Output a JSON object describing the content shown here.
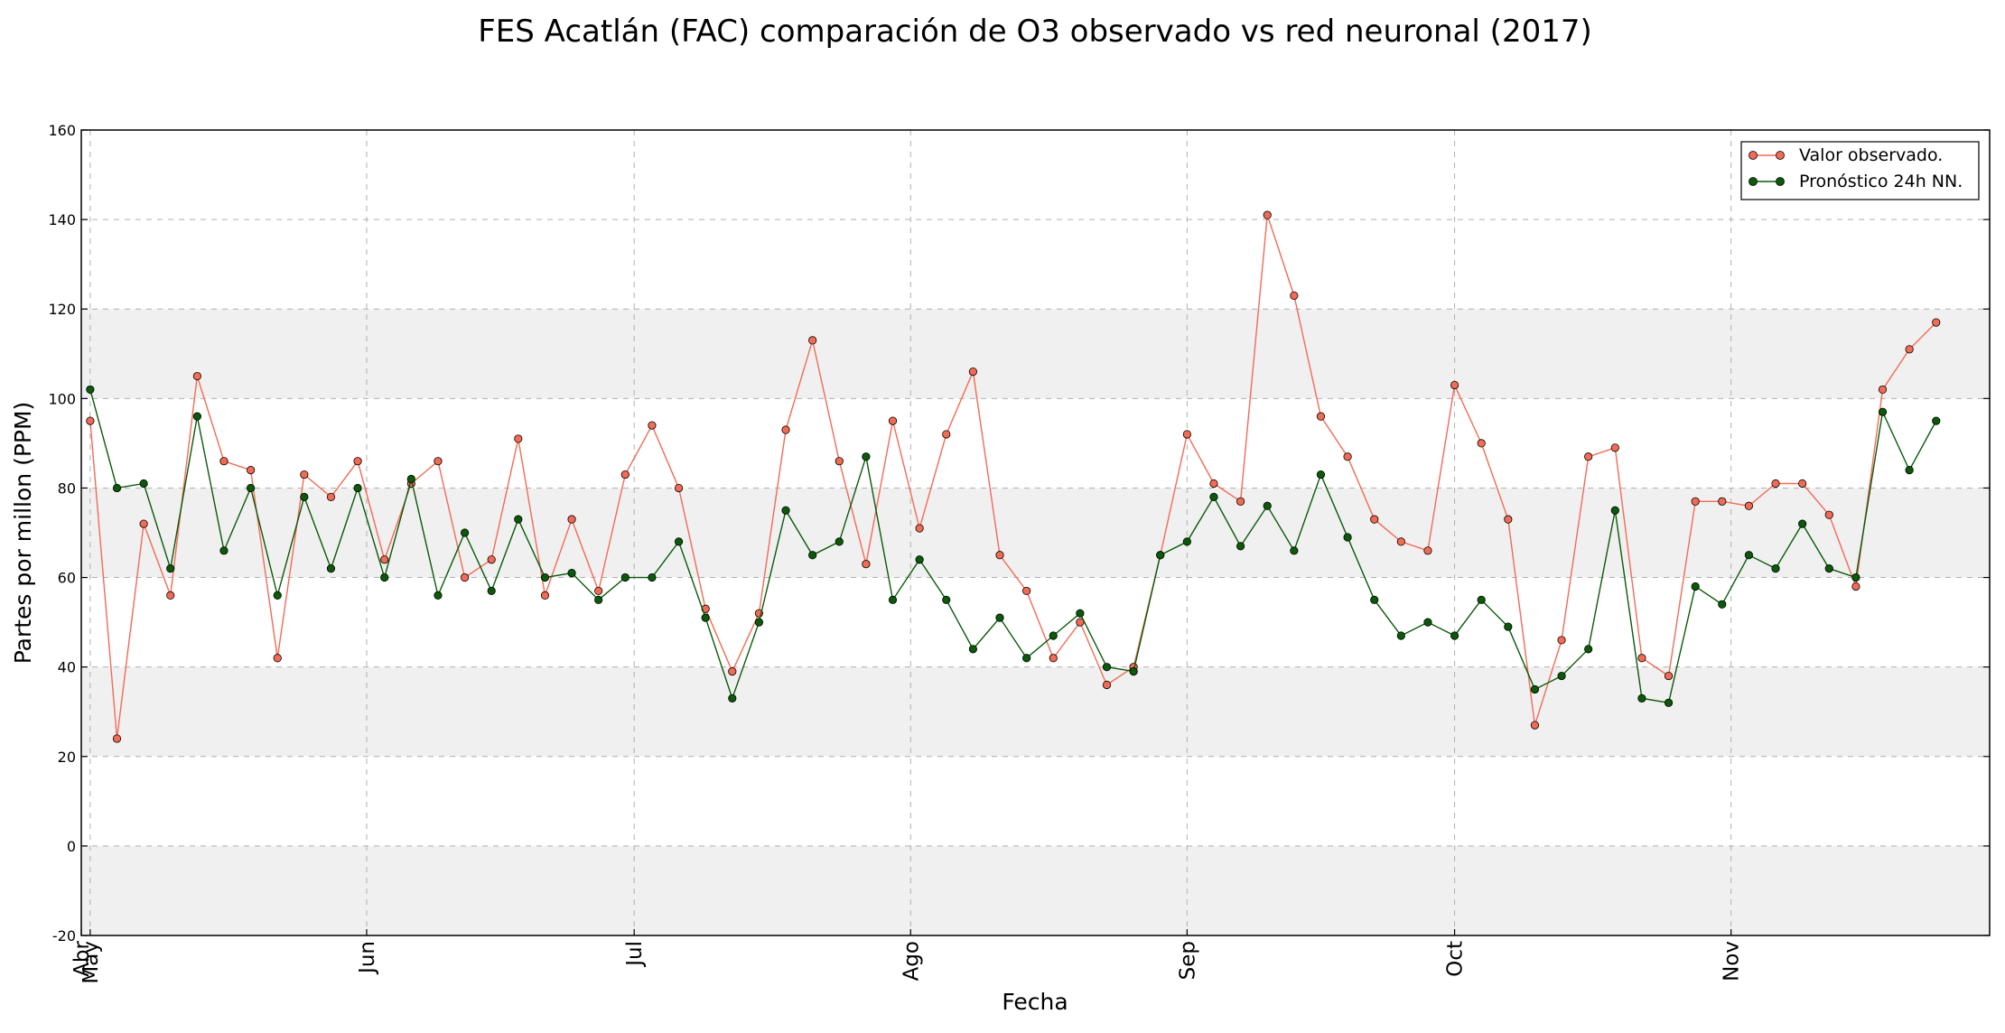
{
  "chart_data": {
    "type": "line",
    "title": "FES Acatlán (FAC) comparación de O3 observado vs red neuronal (2017)",
    "xlabel": "Fecha",
    "ylabel": "Partes por millon (PPM)",
    "ylim": [
      -20,
      160
    ],
    "yticks": [
      -20,
      0,
      20,
      40,
      60,
      80,
      100,
      120,
      140,
      160
    ],
    "xlim": [
      "2017-04-30",
      "2017-11-30"
    ],
    "xticks": [
      {
        "date": "2017-04-30",
        "label": "Abr"
      },
      {
        "date": "2017-05-01",
        "label": "May"
      },
      {
        "date": "2017-06-01",
        "label": "Jun"
      },
      {
        "date": "2017-07-01",
        "label": "Jul"
      },
      {
        "date": "2017-08-01",
        "label": "Ago"
      },
      {
        "date": "2017-09-01",
        "label": "Sep"
      },
      {
        "date": "2017-10-01",
        "label": "Oct"
      },
      {
        "date": "2017-11-01",
        "label": "Nov"
      }
    ],
    "grid": true,
    "shaded_bands": [
      [
        -20,
        0
      ],
      [
        20,
        40
      ],
      [
        60,
        80
      ],
      [
        100,
        120
      ]
    ],
    "legend_position": "top-right",
    "series": [
      {
        "name": "Valor observado.",
        "color": "#f26b55",
        "x": [
          "2017-05-01",
          "2017-05-04",
          "2017-05-07",
          "2017-05-10",
          "2017-05-13",
          "2017-05-16",
          "2017-05-19",
          "2017-05-22",
          "2017-05-25",
          "2017-05-28",
          "2017-05-31",
          "2017-06-03",
          "2017-06-06",
          "2017-06-09",
          "2017-06-12",
          "2017-06-15",
          "2017-06-18",
          "2017-06-21",
          "2017-06-24",
          "2017-06-27",
          "2017-06-30",
          "2017-07-03",
          "2017-07-06",
          "2017-07-09",
          "2017-07-12",
          "2017-07-15",
          "2017-07-18",
          "2017-07-21",
          "2017-07-24",
          "2017-07-27",
          "2017-07-30",
          "2017-08-02",
          "2017-08-05",
          "2017-08-08",
          "2017-08-11",
          "2017-08-14",
          "2017-08-17",
          "2017-08-20",
          "2017-08-23",
          "2017-08-26",
          "2017-08-29",
          "2017-09-01",
          "2017-09-04",
          "2017-09-07",
          "2017-09-10",
          "2017-09-13",
          "2017-09-16",
          "2017-09-19",
          "2017-09-22",
          "2017-09-25",
          "2017-09-28",
          "2017-10-01",
          "2017-10-04",
          "2017-10-07",
          "2017-10-10",
          "2017-10-13",
          "2017-10-16",
          "2017-10-19",
          "2017-10-22",
          "2017-10-25",
          "2017-10-28",
          "2017-10-31",
          "2017-11-03",
          "2017-11-06",
          "2017-11-09",
          "2017-11-12",
          "2017-11-15",
          "2017-11-18",
          "2017-11-21",
          "2017-11-24"
        ],
        "y": [
          95,
          24,
          72,
          56,
          105,
          86,
          84,
          42,
          83,
          78,
          86,
          64,
          81,
          86,
          60,
          64,
          91,
          56,
          73,
          57,
          83,
          94,
          80,
          53,
          39,
          52,
          93,
          113,
          86,
          63,
          95,
          71,
          92,
          106,
          65,
          57,
          42,
          50,
          36,
          40,
          65,
          92,
          81,
          77,
          141,
          123,
          96,
          87,
          73,
          68,
          66,
          103,
          90,
          73,
          27,
          46,
          87,
          89,
          42,
          38,
          77,
          77,
          76,
          81,
          81,
          74,
          58,
          102,
          111,
          117
        ]
      },
      {
        "name": "Pronóstico 24h NN.",
        "color": "#0a5a0a",
        "x": [
          "2017-05-01",
          "2017-05-04",
          "2017-05-07",
          "2017-05-10",
          "2017-05-13",
          "2017-05-16",
          "2017-05-19",
          "2017-05-22",
          "2017-05-25",
          "2017-05-28",
          "2017-05-31",
          "2017-06-03",
          "2017-06-06",
          "2017-06-09",
          "2017-06-12",
          "2017-06-15",
          "2017-06-18",
          "2017-06-21",
          "2017-06-24",
          "2017-06-27",
          "2017-06-30",
          "2017-07-03",
          "2017-07-06",
          "2017-07-09",
          "2017-07-12",
          "2017-07-15",
          "2017-07-18",
          "2017-07-21",
          "2017-07-24",
          "2017-07-27",
          "2017-07-30",
          "2017-08-02",
          "2017-08-05",
          "2017-08-08",
          "2017-08-11",
          "2017-08-14",
          "2017-08-17",
          "2017-08-20",
          "2017-08-23",
          "2017-08-26",
          "2017-08-29",
          "2017-09-01",
          "2017-09-04",
          "2017-09-07",
          "2017-09-10",
          "2017-09-13",
          "2017-09-16",
          "2017-09-19",
          "2017-09-22",
          "2017-09-25",
          "2017-09-28",
          "2017-10-01",
          "2017-10-04",
          "2017-10-07",
          "2017-10-10",
          "2017-10-13",
          "2017-10-16",
          "2017-10-19",
          "2017-10-22",
          "2017-10-25",
          "2017-10-28",
          "2017-10-31",
          "2017-11-03",
          "2017-11-06",
          "2017-11-09",
          "2017-11-12",
          "2017-11-15",
          "2017-11-18",
          "2017-11-21",
          "2017-11-24"
        ],
        "y": [
          102,
          80,
          81,
          62,
          96,
          66,
          80,
          56,
          78,
          62,
          80,
          60,
          82,
          56,
          70,
          57,
          73,
          60,
          61,
          55,
          60,
          60,
          68,
          51,
          33,
          50,
          75,
          65,
          68,
          87,
          55,
          64,
          55,
          44,
          51,
          42,
          47,
          52,
          40,
          39,
          65,
          68,
          78,
          67,
          76,
          66,
          83,
          69,
          55,
          47,
          50,
          47,
          55,
          49,
          35,
          38,
          44,
          75,
          33,
          32,
          58,
          54,
          65,
          62,
          72,
          62,
          60,
          97,
          84,
          95
        ]
      }
    ]
  }
}
